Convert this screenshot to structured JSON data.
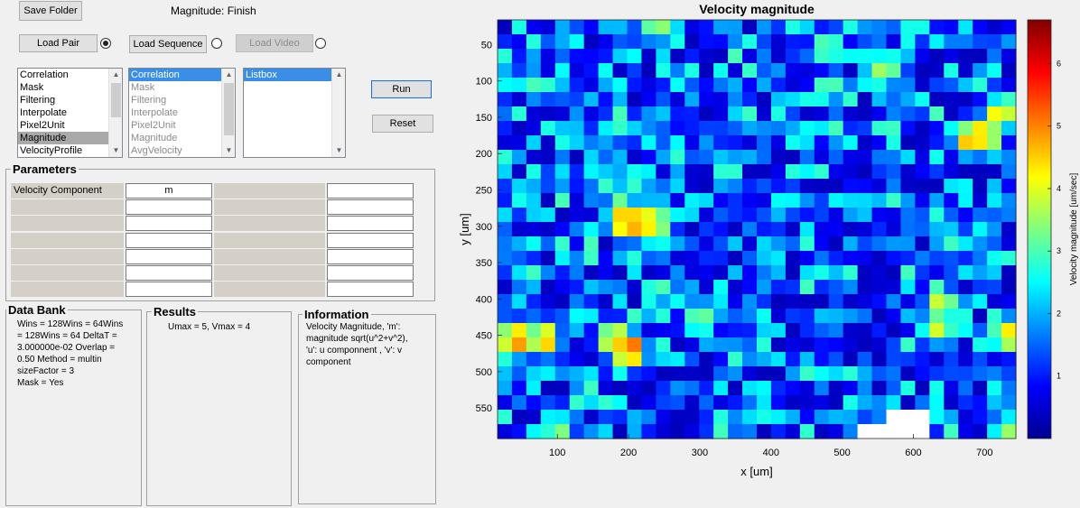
{
  "toolbar": {
    "save_folder": "Save Folder",
    "status_text": "Magnitude: Finish",
    "load_pair": "Load Pair",
    "load_sequence": "Load Sequence",
    "load_video": "Load Video",
    "run": "Run",
    "reset": "Reset"
  },
  "radios": {
    "load_pair": true,
    "load_sequence": false,
    "load_video": false
  },
  "lists": {
    "operations": [
      "Correlation",
      "Mask",
      "Filtering",
      "Interpolate",
      "Pixel2Unit",
      "Magnitude",
      "VelocityProfile"
    ],
    "operations_selected": 5,
    "pipeline": [
      "Correlation",
      "Mask",
      "Filtering",
      "Interpolate",
      "Pixel2Unit",
      "Magnitude",
      "AvgVelocity"
    ],
    "pipeline_selected": 0,
    "listbox": [
      "Listbox"
    ]
  },
  "parameters": {
    "title": "Parameters",
    "label1": "Velocity Component",
    "value1": "m"
  },
  "databank": {
    "title": "Data Bank",
    "lines": [
      "Wins = 128Wins = 64Wins",
      "= 128Wins = 64  DeltaT =",
      "3.000000e-02  Overlap =",
      "0.50  Method = multin",
      "sizeFactor = 3",
      "Mask = Yes"
    ]
  },
  "results": {
    "title": "Results",
    "text": "Umax = 5, Vmax = 4"
  },
  "information": {
    "title": "Information",
    "lines": [
      "Velocity Magnitude, 'm':",
      "magnitude sqrt(u^2+v^2),",
      "'u': u componnent , 'v': v",
      "component"
    ]
  },
  "chart_data": {
    "type": "heatmap",
    "title": "Velocity magnitude",
    "xlabel": "x [um]",
    "ylabel": "y [um]",
    "colorbar_label": "Velocity magnitude [um/sec]",
    "x_ticks": [
      100,
      200,
      300,
      400,
      500,
      600,
      700
    ],
    "y_ticks": [
      50,
      100,
      150,
      200,
      250,
      300,
      350,
      400,
      450,
      500,
      550
    ],
    "xlim": [
      16,
      744
    ],
    "ylim": [
      16,
      592
    ],
    "clim": [
      0,
      6.7
    ],
    "colorbar_ticks": [
      1,
      2,
      3,
      4,
      5,
      6
    ],
    "colormap": "jet",
    "grid_cols": 36,
    "grid_rows": 29,
    "hotspots": [
      {
        "x": 40,
        "y": 455,
        "v": 5.6
      },
      {
        "x": 80,
        "y": 455,
        "v": 5.2
      },
      {
        "x": 200,
        "y": 295,
        "v": 5.8
      },
      {
        "x": 220,
        "y": 295,
        "v": 5.3
      },
      {
        "x": 190,
        "y": 280,
        "v": 4.6
      },
      {
        "x": 240,
        "y": 295,
        "v": 4.2
      },
      {
        "x": 200,
        "y": 470,
        "v": 6.0
      },
      {
        "x": 180,
        "y": 455,
        "v": 5.0
      },
      {
        "x": 700,
        "y": 175,
        "v": 5.3
      },
      {
        "x": 680,
        "y": 180,
        "v": 5.0
      },
      {
        "x": 720,
        "y": 145,
        "v": 4.4
      },
      {
        "x": 740,
        "y": 140,
        "v": 4.2
      },
      {
        "x": 640,
        "y": 410,
        "v": 4.4
      },
      {
        "x": 630,
        "y": 440,
        "v": 4.0
      },
      {
        "x": 560,
        "y": 85,
        "v": 3.9
      },
      {
        "x": 480,
        "y": 55,
        "v": 3.8
      },
      {
        "x": 240,
        "y": 25,
        "v": 3.8
      },
      {
        "x": 300,
        "y": 430,
        "v": 3.8
      },
      {
        "x": 730,
        "y": 450,
        "v": 4.7
      },
      {
        "x": 730,
        "y": 580,
        "v": 3.6
      },
      {
        "x": 100,
        "y": 580,
        "v": 3.6
      }
    ],
    "missing": [
      [
        540,
        585
      ],
      [
        580,
        575
      ],
      [
        600,
        580
      ]
    ]
  }
}
